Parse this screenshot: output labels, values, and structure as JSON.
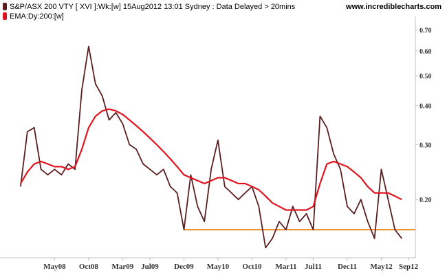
{
  "header": {
    "legend_line1": "S&P/ASX 200 VTY [ XVI ]:Wk:[w]   15Aug2012 13:01 Sydney : Data Delayed > 20mins",
    "legend_line2": "EMA:Dy:200:[w]",
    "brand": "www.incrediblecharts.com"
  },
  "colors": {
    "price": "#5a1e1e",
    "ema": "#e0141e",
    "support": "#e88a1c",
    "axis": "#c0c0c0",
    "background": "#ffffff"
  },
  "chart_data": {
    "type": "line",
    "title": "S&P/ASX 200 VTY [ XVI ]:Wk:[w]",
    "yscale": "log",
    "ylim": [
      0.13,
      0.75
    ],
    "xlim": [
      "2007-11",
      "2012-10"
    ],
    "x_ticks": [
      "May08",
      "Oct08",
      "Mar09",
      "Jul09",
      "Dec09",
      "May10",
      "Oct10",
      "Mar11",
      "Jul11",
      "Dec11",
      "May12",
      "Sep12"
    ],
    "y_ticks": [
      "0.70",
      "0.60",
      "0.50",
      "0.40",
      "0.30",
      "0.20"
    ],
    "series": [
      {
        "name": "S&P/ASX 200 VTY",
        "color": "#5a1e1e",
        "x": [
          "2007-12",
          "2008-01",
          "2008-02",
          "2008-03",
          "2008-04",
          "2008-05",
          "2008-06",
          "2008-07",
          "2008-08",
          "2008-09",
          "2008-10",
          "2008-11",
          "2008-12",
          "2009-01",
          "2009-02",
          "2009-03",
          "2009-04",
          "2009-05",
          "2009-06",
          "2009-07",
          "2009-08",
          "2009-09",
          "2009-10",
          "2009-11",
          "2009-12",
          "2010-01",
          "2010-02",
          "2010-03",
          "2010-04",
          "2010-05",
          "2010-06",
          "2010-07",
          "2010-08",
          "2010-09",
          "2010-10",
          "2010-11",
          "2010-12",
          "2011-01",
          "2011-02",
          "2011-03",
          "2011-04",
          "2011-05",
          "2011-06",
          "2011-07",
          "2011-08",
          "2011-09",
          "2011-10",
          "2011-11",
          "2011-12",
          "2012-01",
          "2012-02",
          "2012-03",
          "2012-04",
          "2012-05",
          "2012-06",
          "2012-07",
          "2012-08"
        ],
        "values": [
          0.22,
          0.33,
          0.34,
          0.25,
          0.24,
          0.25,
          0.24,
          0.26,
          0.25,
          0.45,
          0.62,
          0.47,
          0.43,
          0.36,
          0.38,
          0.35,
          0.3,
          0.29,
          0.26,
          0.25,
          0.24,
          0.25,
          0.22,
          0.21,
          0.16,
          0.24,
          0.19,
          0.17,
          0.25,
          0.31,
          0.22,
          0.21,
          0.2,
          0.21,
          0.22,
          0.19,
          0.14,
          0.15,
          0.17,
          0.16,
          0.19,
          0.17,
          0.18,
          0.16,
          0.37,
          0.34,
          0.28,
          0.25,
          0.19,
          0.18,
          0.2,
          0.17,
          0.15,
          0.25,
          0.2,
          0.16,
          0.15
        ]
      },
      {
        "name": "EMA:Dy:200:[w]",
        "color": "#e0141e",
        "x": [
          "2007-12",
          "2008-01",
          "2008-02",
          "2008-03",
          "2008-04",
          "2008-05",
          "2008-06",
          "2008-07",
          "2008-08",
          "2008-09",
          "2008-10",
          "2008-11",
          "2008-12",
          "2009-01",
          "2009-02",
          "2009-03",
          "2009-04",
          "2009-05",
          "2009-06",
          "2009-07",
          "2009-08",
          "2009-09",
          "2009-10",
          "2009-11",
          "2009-12",
          "2010-01",
          "2010-02",
          "2010-03",
          "2010-04",
          "2010-05",
          "2010-06",
          "2010-07",
          "2010-08",
          "2010-09",
          "2010-10",
          "2010-11",
          "2010-12",
          "2011-01",
          "2011-02",
          "2011-03",
          "2011-04",
          "2011-05",
          "2011-06",
          "2011-07",
          "2011-08",
          "2011-09",
          "2011-10",
          "2011-11",
          "2011-12",
          "2012-01",
          "2012-02",
          "2012-03",
          "2012-04",
          "2012-05",
          "2012-06",
          "2012-07",
          "2012-08"
        ],
        "values": [
          0.225,
          0.245,
          0.26,
          0.265,
          0.26,
          0.255,
          0.255,
          0.25,
          0.255,
          0.29,
          0.34,
          0.37,
          0.385,
          0.39,
          0.385,
          0.375,
          0.36,
          0.345,
          0.33,
          0.315,
          0.3,
          0.285,
          0.27,
          0.255,
          0.24,
          0.235,
          0.23,
          0.225,
          0.23,
          0.235,
          0.235,
          0.23,
          0.225,
          0.225,
          0.22,
          0.215,
          0.205,
          0.195,
          0.19,
          0.185,
          0.185,
          0.185,
          0.185,
          0.19,
          0.225,
          0.26,
          0.265,
          0.26,
          0.255,
          0.245,
          0.235,
          0.22,
          0.21,
          0.21,
          0.21,
          0.205,
          0.2
        ]
      }
    ],
    "hlines": [
      {
        "name": "support",
        "y": 0.16,
        "x_start": "2009-12",
        "x_end": "2012-10",
        "color": "#e88a1c"
      }
    ],
    "grid": false,
    "legend": "top-left"
  }
}
